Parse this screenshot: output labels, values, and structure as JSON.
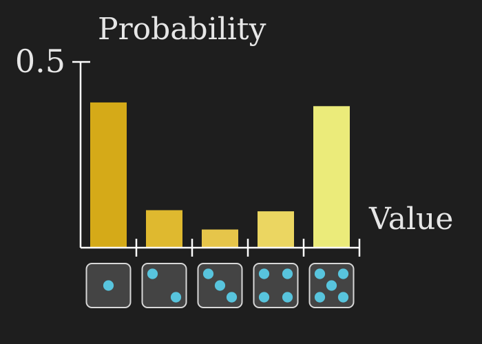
{
  "chart_data": {
    "type": "bar",
    "ylabel": "Probability",
    "xlabel": "Value",
    "ytick_labels": [
      "0.5"
    ],
    "yticks": [
      0.5
    ],
    "ylim": [
      0,
      0.5
    ],
    "categories": [
      "1",
      "2",
      "3",
      "4",
      "5"
    ],
    "category_icons": [
      "die-face-1-icon",
      "die-face-2-icon",
      "die-face-3-icon",
      "die-face-4-icon",
      "die-face-5-icon"
    ],
    "values": [
      0.39,
      0.1,
      0.048,
      0.097,
      0.38
    ],
    "bar_colors": [
      "#d5aa18",
      "#dfb92f",
      "#e6c54a",
      "#ebd661",
      "#ebeb7a"
    ],
    "die_face_color": "#444444",
    "pip_color": "#58c4dd",
    "axis_color": "#ffffff",
    "grid": false
  }
}
